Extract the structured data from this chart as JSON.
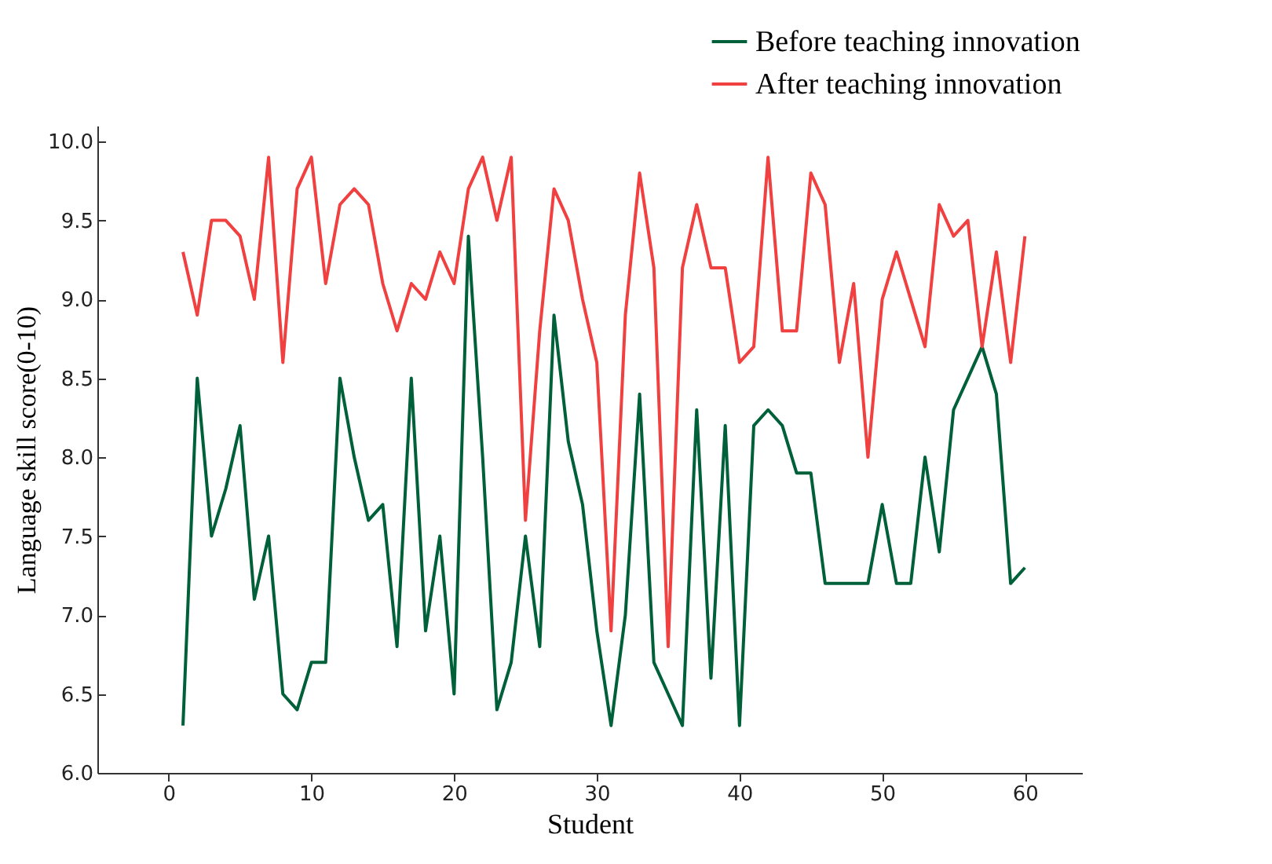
{
  "chart_data": {
    "type": "line",
    "xlabel": "Student",
    "ylabel": "Language skill score(0-10)",
    "x": [
      1,
      2,
      3,
      4,
      5,
      6,
      7,
      8,
      9,
      10,
      11,
      12,
      13,
      14,
      15,
      16,
      17,
      18,
      19,
      20,
      21,
      22,
      23,
      24,
      25,
      26,
      27,
      28,
      29,
      30,
      31,
      32,
      33,
      34,
      35,
      36,
      37,
      38,
      39,
      40,
      41,
      42,
      43,
      44,
      45,
      46,
      47,
      48,
      49,
      50,
      51,
      52,
      53,
      54,
      55,
      56,
      57,
      58,
      59,
      60
    ],
    "series": [
      {
        "name": "Before teaching innovation",
        "color": "#00603a",
        "values": [
          6.3,
          8.5,
          7.5,
          7.8,
          8.2,
          7.1,
          7.5,
          6.5,
          6.4,
          6.7,
          6.7,
          8.5,
          8.0,
          7.6,
          7.7,
          6.8,
          8.5,
          6.9,
          7.5,
          6.5,
          9.4,
          8.0,
          6.4,
          6.7,
          7.5,
          6.8,
          8.9,
          8.1,
          7.7,
          6.9,
          6.3,
          7.0,
          8.4,
          6.7,
          6.5,
          6.3,
          8.3,
          6.6,
          8.2,
          6.3,
          8.2,
          8.3,
          8.2,
          7.9,
          7.9,
          7.2,
          7.2,
          7.2,
          7.2,
          7.7,
          7.2,
          7.2,
          8.0,
          7.4,
          8.3,
          8.5,
          8.7,
          8.4,
          7.2,
          7.3
        ]
      },
      {
        "name": "After teaching innovation",
        "color": "#f04040",
        "values": [
          9.3,
          8.9,
          9.5,
          9.5,
          9.4,
          9.0,
          9.9,
          8.6,
          9.7,
          9.9,
          9.1,
          9.6,
          9.7,
          9.6,
          9.1,
          8.8,
          9.1,
          9.0,
          9.3,
          9.1,
          9.7,
          9.9,
          9.5,
          9.9,
          7.6,
          8.8,
          9.7,
          9.5,
          9.0,
          8.6,
          6.9,
          8.9,
          9.8,
          9.2,
          6.8,
          9.2,
          9.6,
          9.2,
          9.2,
          8.6,
          8.7,
          9.9,
          8.8,
          8.8,
          9.8,
          9.6,
          8.6,
          9.1,
          8.0,
          9.0,
          9.3,
          9.0,
          8.7,
          9.6,
          9.4,
          9.5,
          8.7,
          9.3,
          8.6,
          9.4
        ]
      }
    ],
    "xlim": [
      -5,
      64
    ],
    "xticks": [
      0,
      10,
      20,
      30,
      40,
      50,
      60
    ],
    "ylim": [
      6.0,
      10.1
    ],
    "yticks": [
      {
        "value": 6,
        "label": "6.0"
      },
      {
        "value": 6.5,
        "label": "6.5"
      },
      {
        "value": 7,
        "label": "7.0"
      },
      {
        "value": 7.5,
        "label": "7.5"
      },
      {
        "value": 8,
        "label": "8.0"
      },
      {
        "value": 8.5,
        "label": "8.5"
      },
      {
        "value": 9,
        "label": "9.0"
      },
      {
        "value": 9.5,
        "label": "9.5"
      },
      {
        "value": 10,
        "label": "10.0"
      }
    ],
    "grid": false,
    "legend": "top right",
    "marker": "none",
    "line_style": "solid"
  }
}
